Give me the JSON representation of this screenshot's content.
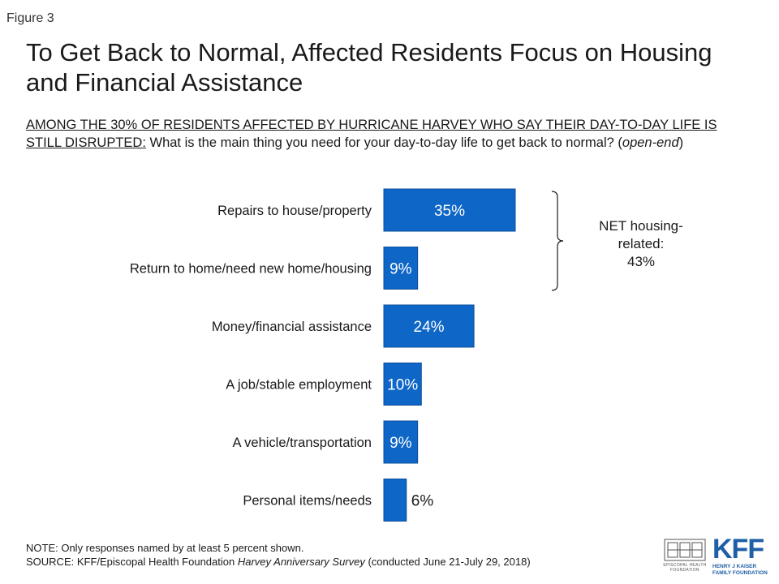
{
  "figure_label": "Figure 3",
  "title": "To Get Back to Normal, Affected Residents Focus on Housing and Financial Assistance",
  "question": {
    "prefix": "AMONG THE 30% OF RESIDENTS AFFECTED BY HURRICANE HARVEY WHO SAY THEIR DAY-TO-DAY LIFE IS STILL DISRUPTED:",
    "text": " What is the main thing you need for your day-to-day life to get back to normal? (",
    "emphasis": "open-end",
    "suffix": ")"
  },
  "net_label": {
    "line1": "NET housing-",
    "line2": "related:",
    "value": "43%"
  },
  "notes": {
    "note": "NOTE: Only responses named by at least 5 percent shown.",
    "source_prefix": "SOURCE: KFF/Episcopal Health Foundation ",
    "source_title": "Harvey Anniversary Survey",
    "source_suffix": " (conducted June 21-July 29, 2018)"
  },
  "logos": {
    "ehf": "EPISCOPAL HEALTH FOUNDATION",
    "kff_mark": "KFF",
    "kff_sub_line1": "HENRY J KAISER",
    "kff_sub_line2": "FAMILY FOUNDATION"
  },
  "colors": {
    "bar": "#0e66c6",
    "bar_label_inside": "#ffffff",
    "bar_label_outside": "#1a1a1a"
  },
  "chart_data": {
    "type": "bar",
    "orientation": "horizontal",
    "categories": [
      "Repairs to house/property",
      "Return to home/need new home/housing",
      "Money/financial assistance",
      "A job/stable employment",
      "A vehicle/transportation",
      "Personal items/needs"
    ],
    "values": [
      35,
      9,
      24,
      10,
      9,
      6
    ],
    "value_labels": [
      "35%",
      "9%",
      "24%",
      "10%",
      "9%",
      "6%"
    ],
    "unit": "%",
    "xlim": [
      0,
      100
    ],
    "grid": false,
    "legend": "none",
    "bracket_categories": [
      0,
      1
    ]
  }
}
